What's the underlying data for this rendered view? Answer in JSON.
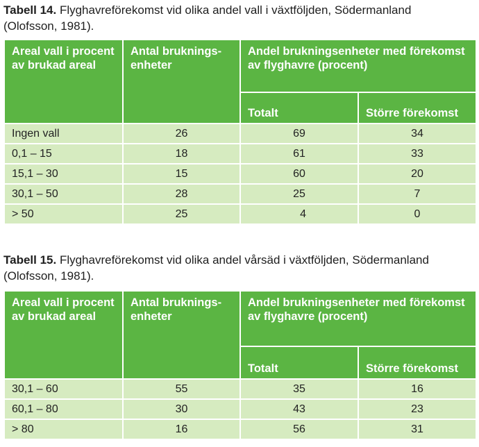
{
  "table14": {
    "caption_label": "Tabell 14.",
    "caption_line1": " Flyghavreförekomst vid olika andel vall i växtföljden, Södermanland",
    "caption_line2": "(Olofsson, 1981).",
    "headers": {
      "col1": "Areal vall i procent av brukad areal",
      "col2": "Antal bruknings-enheter",
      "group": "Andel brukningsenheter med förekomst av flyghavre (procent)",
      "sub1": "Totalt",
      "sub2": "Större förekomst"
    },
    "rows": [
      [
        "Ingen vall",
        "26",
        "69",
        "34"
      ],
      [
        "0,1 – 15",
        "18",
        "61",
        "33"
      ],
      [
        "15,1 – 30",
        "15",
        "60",
        "20"
      ],
      [
        "30,1 – 50",
        "28",
        "25",
        "7"
      ],
      [
        "> 50",
        "25",
        "4",
        "0"
      ]
    ]
  },
  "table15": {
    "caption_label": "Tabell 15.",
    "caption_line1": " Flyghavreförekomst vid olika andel vårsäd i växtföljden, Södermanland",
    "caption_line2": "(Olofsson, 1981).",
    "headers": {
      "col1": "Areal vall i procent av brukad areal",
      "col2": "Antal bruknings-enheter",
      "group": "Andel brukningsenheter med förekomst av flyghavre (procent)",
      "sub1": "Totalt",
      "sub2": "Större förekomst"
    },
    "rows": [
      [
        "30,1 – 60",
        "55",
        "35",
        "16"
      ],
      [
        "60,1 – 80",
        "30",
        "43",
        "23"
      ],
      [
        "> 80",
        "16",
        "56",
        "31"
      ]
    ]
  },
  "colors": {
    "header_bg": "#5bb543",
    "row_bg": "#d6ebc0",
    "header_text": "#ffffff"
  }
}
